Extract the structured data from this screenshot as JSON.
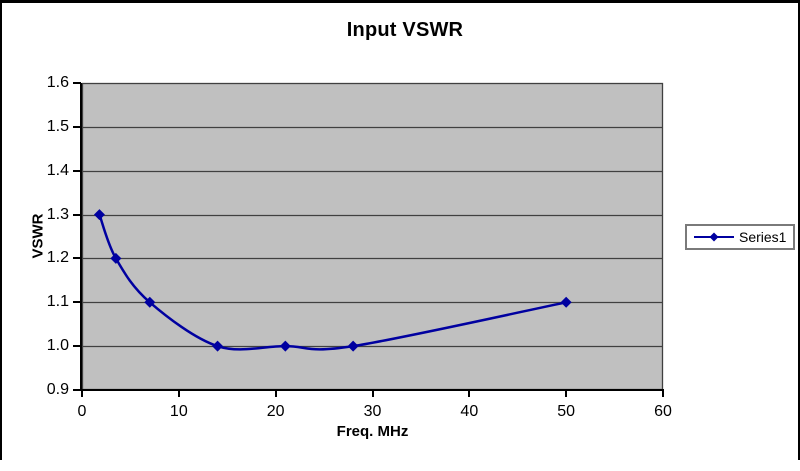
{
  "window": {
    "background": "#FFFFFF",
    "frame_border_color": "#000000"
  },
  "chart_data": {
    "type": "line",
    "title": "Input VSWR",
    "xlabel": "Freq. MHz",
    "ylabel": "VSWR",
    "xlim": [
      0,
      60
    ],
    "ylim": [
      0.9,
      1.6
    ],
    "x_ticks": [
      0,
      10,
      20,
      30,
      40,
      50,
      60
    ],
    "y_ticks": [
      0.9,
      1.0,
      1.1,
      1.2,
      1.3,
      1.4,
      1.5,
      1.6
    ],
    "y_tick_decimals": 1,
    "grid": "horizontal",
    "smooth_line": true,
    "legend_position": "right",
    "plot_bg_color": "#C0C0C0",
    "gridline_color": "#404040",
    "axis_color": "#000000",
    "series": [
      {
        "name": "Series1",
        "color": "#0000A0",
        "marker": "diamond",
        "x": [
          1.8,
          3.5,
          7,
          14,
          21,
          28,
          50
        ],
        "y": [
          1.3,
          1.2,
          1.1,
          1.0,
          1.0,
          1.0,
          1.1
        ]
      }
    ]
  }
}
